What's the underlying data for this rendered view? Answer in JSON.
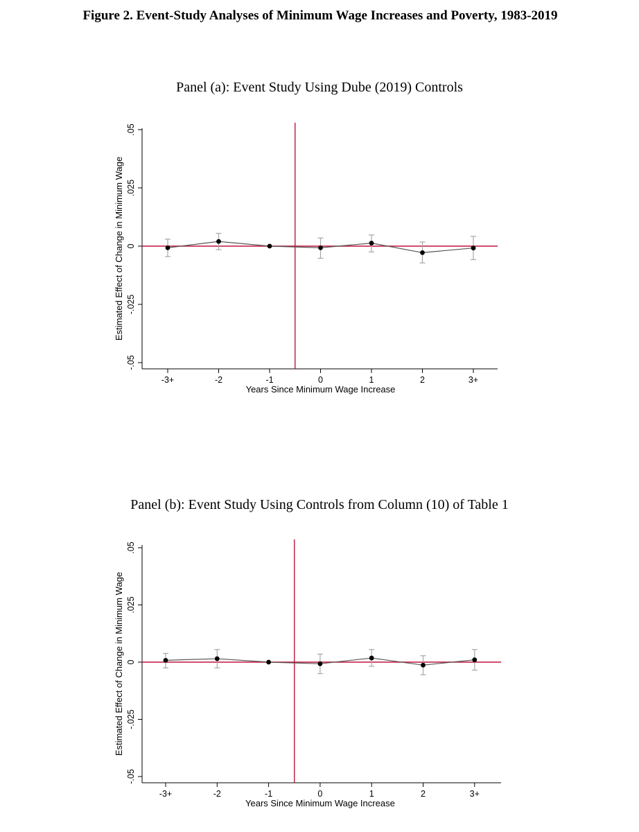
{
  "figure": {
    "title": "Figure 2. Event-Study Analyses of Minimum Wage Increases and Poverty, 1983-2019"
  },
  "chart_data": [
    {
      "type": "scatter",
      "panel_title": "Panel (a): Event Study Using Dube (2019) Controls",
      "xlabel": "Years Since Minimum Wage Increase",
      "ylabel": "Estimated Effect of Change in Minimum Wage",
      "categories": [
        "-3+",
        "-2",
        "-1",
        "0",
        "1",
        "2",
        "3+"
      ],
      "values": [
        -0.0007,
        0.002,
        0.0,
        -0.0007,
        0.0013,
        -0.0028,
        -0.0008
      ],
      "ci_low": [
        -0.0045,
        -0.0015,
        0.0,
        -0.0052,
        -0.0025,
        -0.0072,
        -0.0058
      ],
      "ci_high": [
        0.003,
        0.0055,
        0.0,
        0.0035,
        0.0048,
        0.0018,
        0.0042
      ],
      "yticks": [
        -0.05,
        -0.025,
        0,
        0.025,
        0.05
      ],
      "ytick_labels": [
        "-.05",
        "-.025",
        "0",
        ".025",
        ".05"
      ],
      "ylim": [
        -0.05,
        0.05
      ],
      "event_line_between": [
        "-1",
        "0"
      ],
      "zero_line": true,
      "colors": {
        "markers": "#000000",
        "connect": "#555555",
        "ci": "#a6a6a6",
        "reference": "#c0143c"
      }
    },
    {
      "type": "scatter",
      "panel_title": "Panel (b): Event Study Using Controls from Column (10) of Table 1",
      "xlabel": "Years Since Minimum Wage Increase",
      "ylabel": "Estimated Effect of Change in Minimum Wage",
      "categories": [
        "-3+",
        "-2",
        "-1",
        "0",
        "1",
        "2",
        "3+"
      ],
      "values": [
        0.0008,
        0.0015,
        0.0,
        -0.0007,
        0.0018,
        -0.0013,
        0.001
      ],
      "ci_low": [
        -0.0025,
        -0.0025,
        0.0,
        -0.005,
        -0.0018,
        -0.0055,
        -0.0035
      ],
      "ci_high": [
        0.0038,
        0.0055,
        0.0,
        0.0035,
        0.0055,
        0.0028,
        0.0055
      ],
      "yticks": [
        -0.05,
        -0.025,
        0,
        0.025,
        0.05
      ],
      "ytick_labels": [
        "-.05",
        "-.025",
        "0",
        ".025",
        ".05"
      ],
      "ylim": [
        -0.05,
        0.05
      ],
      "event_line_between": [
        "-1",
        "0"
      ],
      "zero_line": true,
      "colors": {
        "markers": "#000000",
        "connect": "#555555",
        "ci": "#a6a6a6",
        "reference": "#c0143c"
      }
    }
  ]
}
